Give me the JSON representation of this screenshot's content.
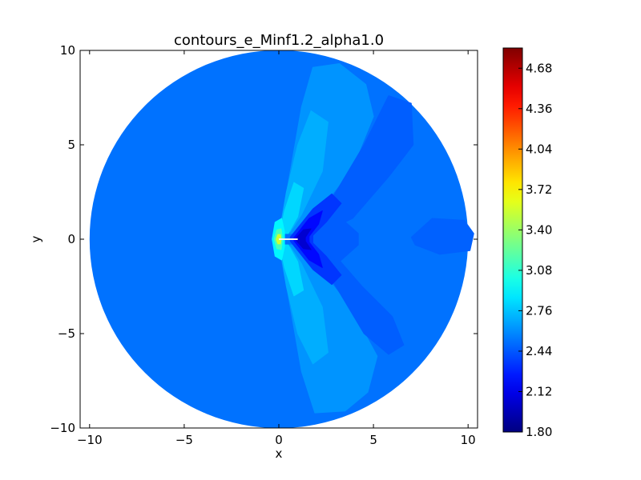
{
  "chart_data": {
    "type": "contour",
    "title": "contours_e_Minf1.2_alpha1.0",
    "xlabel": "x",
    "ylabel": "y",
    "xlim": [
      -10.5,
      10.5
    ],
    "ylim": [
      -10,
      10
    ],
    "x_ticks": [
      -10,
      -5,
      0,
      5,
      10
    ],
    "x_tick_labels": [
      "−10",
      "−5",
      "0",
      "5",
      "10"
    ],
    "y_ticks": [
      -10,
      -5,
      0,
      5,
      10
    ],
    "y_tick_labels": [
      "−10",
      "−5",
      "0",
      "5",
      "10"
    ],
    "domain": {
      "shape": "circle",
      "center": [
        0,
        0
      ],
      "radius": 10
    },
    "airfoil": {
      "from": [
        0,
        0
      ],
      "to": [
        1,
        0
      ]
    },
    "colorbar": {
      "colormap": "jet",
      "min": 1.8,
      "max": 4.84,
      "ticks": [
        1.8,
        2.12,
        2.44,
        2.76,
        3.08,
        3.4,
        3.72,
        4.04,
        4.36,
        4.68
      ],
      "tick_labels": [
        "1.80",
        "2.12",
        "2.44",
        "2.76",
        "3.08",
        "3.40",
        "3.72",
        "4.04",
        "4.36",
        "4.68"
      ]
    },
    "background_level": 2.52,
    "regions": [
      {
        "name": "upper-shock-plume",
        "level": 2.62,
        "points": [
          [
            0,
            0.3
          ],
          [
            0.5,
            3
          ],
          [
            1.2,
            7
          ],
          [
            1.8,
            9.1
          ],
          [
            3.2,
            9.3
          ],
          [
            4.6,
            8.2
          ],
          [
            5,
            6.5
          ],
          [
            3.9,
            3.8
          ],
          [
            2,
            1.3
          ],
          [
            0.9,
            0.3
          ]
        ]
      },
      {
        "name": "lower-shock-plume",
        "level": 2.62,
        "points": [
          [
            0,
            -0.3
          ],
          [
            0.5,
            -3
          ],
          [
            1.2,
            -7
          ],
          [
            1.9,
            -9.2
          ],
          [
            3.5,
            -9.1
          ],
          [
            4.7,
            -8.1
          ],
          [
            5.2,
            -6.2
          ],
          [
            3.9,
            -3.8
          ],
          [
            2,
            -1.3
          ],
          [
            0.9,
            -0.3
          ]
        ]
      },
      {
        "name": "upper-wake-lobe",
        "level": 2.46,
        "points": [
          [
            1.1,
            0.2
          ],
          [
            2.6,
            1.8
          ],
          [
            4.5,
            5
          ],
          [
            5.8,
            7.6
          ],
          [
            7,
            7.2
          ],
          [
            7.1,
            5
          ],
          [
            5.8,
            3.3
          ],
          [
            3.9,
            1.1
          ],
          [
            2.2,
            0.3
          ]
        ]
      },
      {
        "name": "lower-wake-lobe",
        "level": 2.46,
        "points": [
          [
            1.1,
            -0.2
          ],
          [
            2.6,
            -1.8
          ],
          [
            4.5,
            -5
          ],
          [
            5.8,
            -6.1
          ],
          [
            6.6,
            -5.6
          ],
          [
            6,
            -4.1
          ],
          [
            4.4,
            -2.5
          ],
          [
            3.1,
            -1
          ],
          [
            2.2,
            -0.3
          ]
        ]
      },
      {
        "name": "center-wake-lobe",
        "level": 2.46,
        "points": [
          [
            1.2,
            0
          ],
          [
            3.2,
            1.2
          ],
          [
            4.2,
            0.3
          ],
          [
            4.2,
            -0.3
          ],
          [
            3.2,
            -1.2
          ]
        ]
      },
      {
        "name": "far-wake-blob",
        "level": 2.47,
        "points": [
          [
            7,
            0.1
          ],
          [
            8.1,
            1.1
          ],
          [
            9.8,
            1
          ],
          [
            10.3,
            0.3
          ],
          [
            10.1,
            -0.6
          ],
          [
            8.5,
            -0.8
          ],
          [
            7.2,
            -0.3
          ]
        ]
      },
      {
        "name": "upper-plume-core",
        "level": 2.7,
        "points": [
          [
            0.05,
            0.4
          ],
          [
            0.4,
            2.5
          ],
          [
            1,
            5
          ],
          [
            1.7,
            6.8
          ],
          [
            2.6,
            6.2
          ],
          [
            2.3,
            3.6
          ],
          [
            1.2,
            1.3
          ],
          [
            0.6,
            0.4
          ]
        ]
      },
      {
        "name": "lower-plume-core",
        "level": 2.7,
        "points": [
          [
            0.05,
            -0.4
          ],
          [
            0.4,
            -2.5
          ],
          [
            1,
            -5
          ],
          [
            1.8,
            -6.6
          ],
          [
            2.6,
            -6
          ],
          [
            2.3,
            -3.6
          ],
          [
            1.2,
            -1.3
          ],
          [
            0.6,
            -0.4
          ]
        ]
      },
      {
        "name": "upper-plume-inner",
        "level": 2.82,
        "points": [
          [
            0.05,
            0.3
          ],
          [
            0.3,
            1.5
          ],
          [
            0.8,
            3
          ],
          [
            1.3,
            2.7
          ],
          [
            1,
            1.2
          ],
          [
            0.5,
            0.3
          ]
        ]
      },
      {
        "name": "lower-plume-inner",
        "level": 2.82,
        "points": [
          [
            0.05,
            -0.3
          ],
          [
            0.3,
            -1.5
          ],
          [
            0.8,
            -3
          ],
          [
            1.3,
            -2.7
          ],
          [
            1,
            -1.2
          ],
          [
            0.5,
            -0.3
          ]
        ]
      },
      {
        "name": "expansion-fan-outer",
        "level": 2.34,
        "points": [
          [
            0.6,
            0.1
          ],
          [
            1.8,
            1.6
          ],
          [
            2.8,
            2.4
          ],
          [
            3.3,
            1.9
          ],
          [
            2.5,
            0.9
          ],
          [
            1.8,
            0.2
          ],
          [
            1.8,
            -0.2
          ],
          [
            2.5,
            -0.9
          ],
          [
            3.3,
            -1.9
          ],
          [
            2.8,
            -2.4
          ],
          [
            1.8,
            -1.6
          ],
          [
            0.6,
            -0.1
          ]
        ]
      },
      {
        "name": "expansion-fan-mid",
        "level": 2.2,
        "points": [
          [
            0.8,
            0.08
          ],
          [
            1.6,
            1.1
          ],
          [
            2.3,
            1.5
          ],
          [
            2.1,
            0.8
          ],
          [
            1.6,
            0.15
          ],
          [
            1.6,
            -0.15
          ],
          [
            2.1,
            -0.8
          ],
          [
            2.3,
            -1.5
          ],
          [
            1.6,
            -1.1
          ],
          [
            0.8,
            -0.08
          ]
        ]
      },
      {
        "name": "expansion-fan-core",
        "level": 2.04,
        "points": [
          [
            0.9,
            0.05
          ],
          [
            1.3,
            0.5
          ],
          [
            1.7,
            0.55
          ],
          [
            1.4,
            0.1
          ],
          [
            1.4,
            -0.1
          ],
          [
            1.7,
            -0.55
          ],
          [
            1.3,
            -0.5
          ],
          [
            0.9,
            -0.05
          ]
        ]
      },
      {
        "name": "stagnation-outer",
        "level": 2.92,
        "points": [
          [
            -0.35,
            0
          ],
          [
            -0.2,
            0.9
          ],
          [
            0.15,
            1.1
          ],
          [
            0.3,
            0.4
          ],
          [
            0.3,
            -0.4
          ],
          [
            0.15,
            -1.1
          ],
          [
            -0.2,
            -0.9
          ]
        ]
      },
      {
        "name": "stagnation-inner",
        "level": 3.15,
        "points": [
          [
            -0.25,
            0
          ],
          [
            -0.1,
            0.5
          ],
          [
            0.12,
            0.55
          ],
          [
            0.2,
            0
          ],
          [
            0.12,
            -0.55
          ],
          [
            -0.1,
            -0.5
          ]
        ]
      },
      {
        "name": "stagnation-core",
        "level": 3.55,
        "points": [
          [
            -0.15,
            0
          ],
          [
            -0.05,
            0.25
          ],
          [
            0.08,
            0.25
          ],
          [
            0.12,
            0
          ],
          [
            0.08,
            -0.25
          ],
          [
            -0.05,
            -0.25
          ]
        ]
      }
    ]
  }
}
